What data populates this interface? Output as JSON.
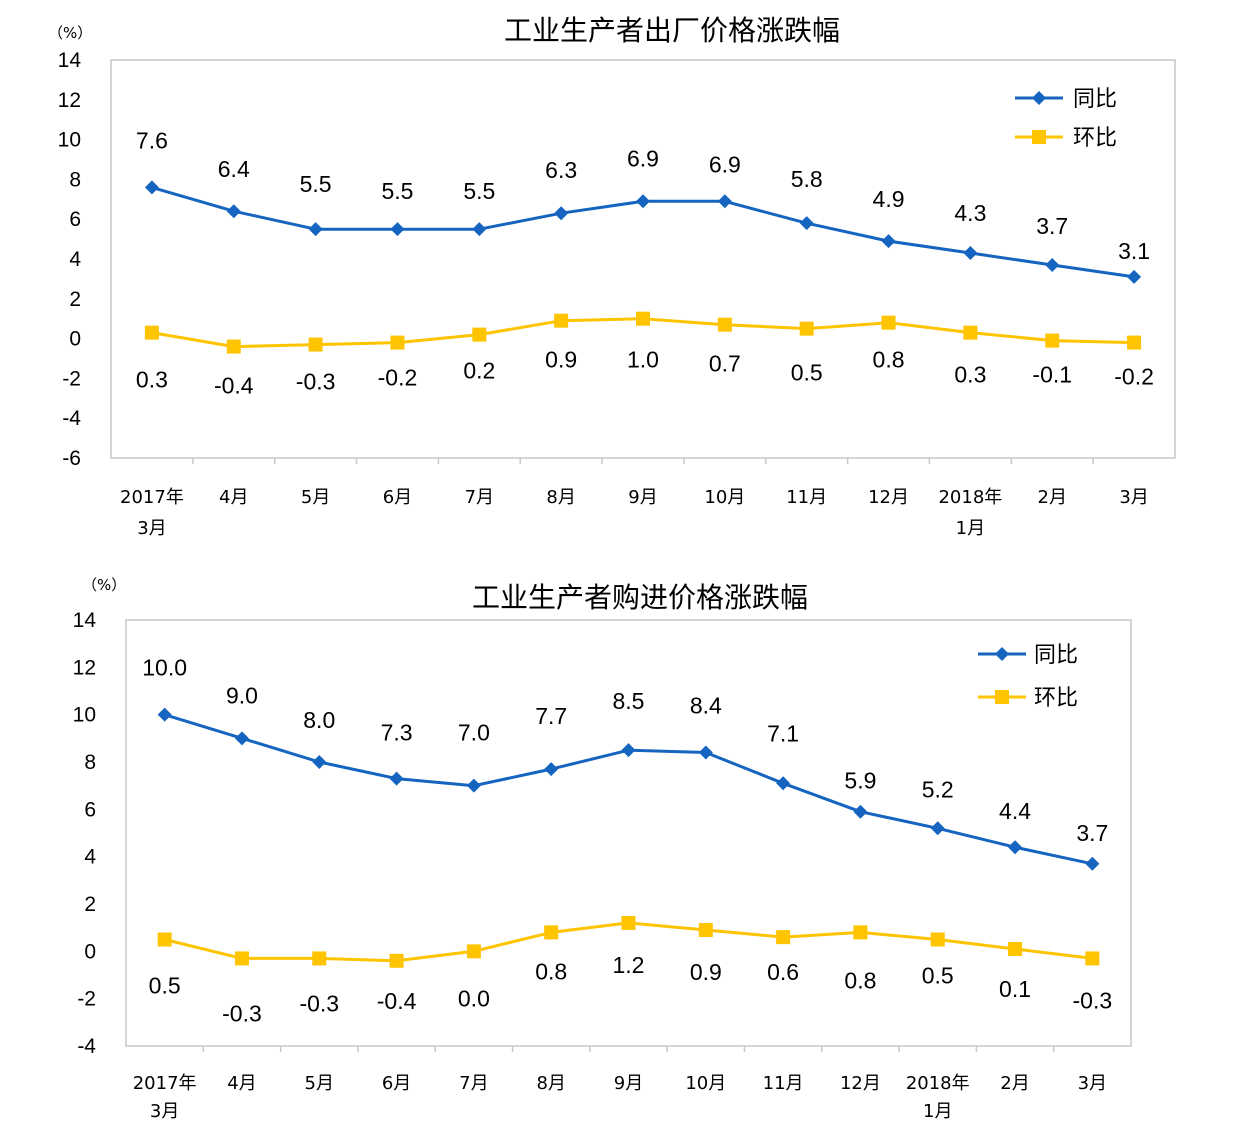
{
  "colors": {
    "yoy": "#1565C0",
    "mom": "#FFC400",
    "axis": "#C8C8C8"
  },
  "chart_data": [
    {
      "type": "line",
      "title": "工业生产者出厂价格涨跌幅",
      "unit": "（%）",
      "ylim": [
        -6,
        14
      ],
      "yticks": [
        "14",
        "12",
        "10",
        "8",
        "6",
        "4",
        "2",
        "0",
        "-2",
        "-4",
        "-6"
      ],
      "categories": [
        [
          "2017年",
          "3月"
        ],
        [
          "4月"
        ],
        [
          "5月"
        ],
        [
          "6月"
        ],
        [
          "7月"
        ],
        [
          "8月"
        ],
        [
          "9月"
        ],
        [
          "10月"
        ],
        [
          "11月"
        ],
        [
          "12月"
        ],
        [
          "2018年",
          "1月"
        ],
        [
          "2月"
        ],
        [
          "3月"
        ]
      ],
      "legend_position": "top-right",
      "series": [
        {
          "name": "同比",
          "color": "#1565C0",
          "marker": "diamond",
          "values": [
            7.6,
            6.4,
            5.5,
            5.5,
            5.5,
            6.3,
            6.9,
            6.9,
            5.8,
            4.9,
            4.3,
            3.7,
            3.1
          ],
          "labels": [
            "7.6",
            "6.4",
            "5.5",
            "5.5",
            "5.5",
            "6.3",
            "6.9",
            "6.9",
            "5.8",
            "4.9",
            "4.3",
            "3.7",
            "3.1"
          ]
        },
        {
          "name": "环比",
          "color": "#FFC400",
          "marker": "square",
          "values": [
            0.3,
            -0.4,
            -0.3,
            -0.2,
            0.2,
            0.9,
            1.0,
            0.7,
            0.5,
            0.8,
            0.3,
            -0.1,
            -0.2
          ],
          "labels": [
            "0.3",
            "-0.4",
            "-0.3",
            "-0.2",
            "0.2",
            "0.9",
            "1.0",
            "0.7",
            "0.5",
            "0.8",
            "0.3",
            "-0.1",
            "-0.2"
          ]
        }
      ]
    },
    {
      "type": "line",
      "title": "工业生产者购进价格涨跌幅",
      "unit": "（%）",
      "ylim": [
        -4,
        14
      ],
      "yticks": [
        "14",
        "12",
        "10",
        "8",
        "6",
        "4",
        "2",
        "0",
        "-2",
        "-4"
      ],
      "categories": [
        [
          "2017年",
          "3月"
        ],
        [
          "4月"
        ],
        [
          "5月"
        ],
        [
          "6月"
        ],
        [
          "7月"
        ],
        [
          "8月"
        ],
        [
          "9月"
        ],
        [
          "10月"
        ],
        [
          "11月"
        ],
        [
          "12月"
        ],
        [
          "2018年",
          "1月"
        ],
        [
          "2月"
        ],
        [
          "3月"
        ]
      ],
      "legend_position": "top-right",
      "series": [
        {
          "name": "同比",
          "color": "#1565C0",
          "marker": "diamond",
          "values": [
            10.0,
            9.0,
            8.0,
            7.3,
            7.0,
            7.7,
            8.5,
            8.4,
            7.1,
            5.9,
            5.2,
            4.4,
            3.7
          ],
          "labels": [
            "10.0",
            "9.0",
            "8.0",
            "7.3",
            "7.0",
            "7.7",
            "8.5",
            "8.4",
            "7.1",
            "5.9",
            "5.2",
            "4.4",
            "3.7"
          ]
        },
        {
          "name": "环比",
          "color": "#FFC400",
          "marker": "square",
          "values": [
            0.5,
            -0.3,
            -0.3,
            -0.4,
            0.0,
            0.8,
            1.2,
            0.9,
            0.6,
            0.8,
            0.5,
            0.1,
            -0.3
          ],
          "labels": [
            "0.5",
            "-0.3",
            "-0.3",
            "-0.4",
            "0.0",
            "0.8",
            "1.2",
            "0.9",
            "0.6",
            "0.8",
            "0.5",
            "0.1",
            "-0.3"
          ]
        }
      ]
    }
  ]
}
